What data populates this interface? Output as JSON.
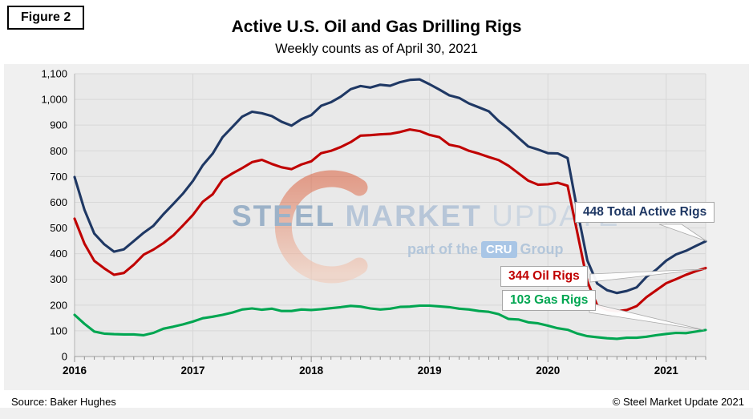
{
  "figure_label": "Figure 2",
  "title": "Active U.S. Oil and Gas Drilling Rigs",
  "subtitle": "Weekly counts as of April 30, 2021",
  "footer": {
    "source": "Source: Baker Hughes",
    "copyright": "© Steel Market Update 2021"
  },
  "watermark": {
    "word1": "STEEL",
    "word2": "MARKET",
    "word3": "UPDATE",
    "tagline_prefix": "part of the",
    "cru": "CRU",
    "tagline_suffix": "Group"
  },
  "annotations": {
    "total": {
      "label": "448 Total Active Rigs",
      "value": 448,
      "color": "#1f3864"
    },
    "oil": {
      "label": "344 Oil Rigs",
      "value": 344,
      "color": "#c00000"
    },
    "gas": {
      "label": "103 Gas Rigs",
      "value": 103,
      "color": "#00a651"
    }
  },
  "colors": {
    "total_line": "#1f3864",
    "oil_line": "#c00000",
    "gas_line": "#00a651",
    "plot_background": "#e9e9e9",
    "panel_background": "#f0f0f0",
    "gridline": "#d7d7d7",
    "axis_line": "#9e9e9e",
    "callout_border": "#a6a6a6"
  },
  "chart_data": {
    "type": "line",
    "title": "Active U.S. Oil and Gas Drilling Rigs",
    "subtitle": "Weekly counts as of April 30, 2021",
    "x_axis": "year (weekly counts, Jan 2016 - Apr 30 2021)",
    "x_start": 2016,
    "x_step_years": 0.0833333,
    "x_tick_labels": [
      "2016",
      "2017",
      "2018",
      "2019",
      "2020",
      "2021"
    ],
    "x_tick_values": [
      2016,
      2017,
      2018,
      2019,
      2020,
      2021
    ],
    "y_tick_labels": [
      "0",
      "100",
      "200",
      "300",
      "400",
      "500",
      "600",
      "700",
      "800",
      "900",
      "1,000",
      "1,100"
    ],
    "y_tick_values": [
      0,
      100,
      200,
      300,
      400,
      500,
      600,
      700,
      800,
      900,
      1000,
      1100
    ],
    "ylim": [
      0,
      1100
    ],
    "grid": true,
    "legend": "callout labels at line ends",
    "series": [
      {
        "id": "total",
        "name": "Total Active Rigs",
        "color": "#1f3864",
        "latest": 448,
        "values": [
          698,
          571,
          478,
          437,
          408,
          417,
          449,
          481,
          509,
          553,
          593,
          634,
          683,
          744,
          789,
          853,
          893,
          933,
          952,
          946,
          935,
          913,
          898,
          923,
          939,
          975,
          989,
          1011,
          1040,
          1052,
          1046,
          1057,
          1053,
          1067,
          1076,
          1078,
          1059,
          1038,
          1016,
          1006,
          984,
          969,
          954,
          916,
          886,
          851,
          817,
          805,
          791,
          790,
          772,
          566,
          374,
          284,
          258,
          247,
          255,
          269,
          310,
          338,
          373,
          397,
          411,
          430,
          448
        ]
      },
      {
        "id": "oil",
        "name": "Oil Rigs",
        "color": "#c00000",
        "latest": 344,
        "values": [
          536,
          439,
          372,
          343,
          318,
          325,
          357,
          396,
          416,
          441,
          471,
          510,
          551,
          602,
          631,
          688,
          712,
          733,
          756,
          765,
          749,
          736,
          729,
          747,
          759,
          791,
          800,
          815,
          834,
          859,
          861,
          864,
          866,
          873,
          883,
          877,
          862,
          853,
          824,
          816,
          800,
          789,
          776,
          764,
          742,
          713,
          684,
          668,
          670,
          676,
          664,
          479,
          292,
          199,
          181,
          176,
          181,
          196,
          231,
          258,
          285,
          301,
          318,
          332,
          344
        ]
      },
      {
        "id": "gas",
        "name": "Gas Rigs",
        "color": "#00a651",
        "latest": 103,
        "values": [
          162,
          127,
          97,
          89,
          87,
          86,
          86,
          83,
          92,
          108,
          116,
          125,
          136,
          149,
          155,
          162,
          171,
          183,
          187,
          182,
          186,
          177,
          177,
          183,
          181,
          184,
          188,
          192,
          197,
          194,
          187,
          183,
          186,
          193,
          194,
          198,
          198,
          195,
          192,
          186,
          183,
          177,
          174,
          165,
          146,
          144,
          133,
          129,
          120,
          110,
          104,
          89,
          79,
          75,
          71,
          69,
          73,
          73,
          77,
          83,
          88,
          92,
          91,
          97,
          103
        ]
      }
    ]
  }
}
